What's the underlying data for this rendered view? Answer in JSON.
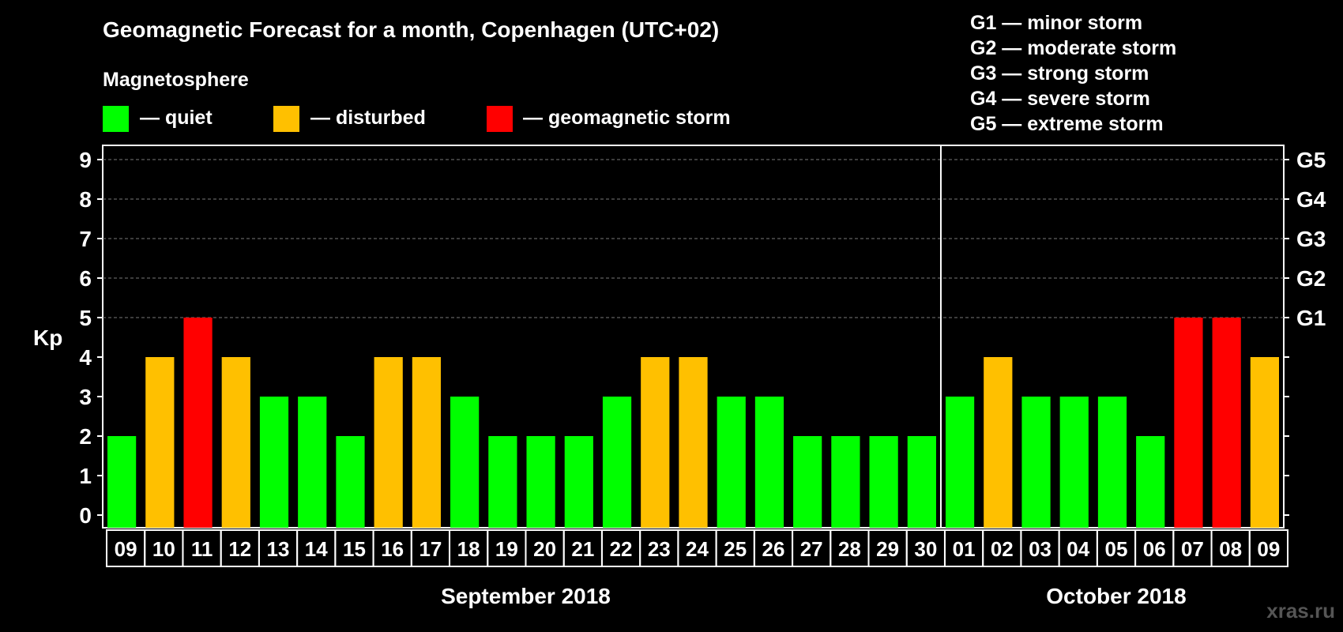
{
  "title": "Geomagnetic Forecast for a month, Copenhagen (UTC+02)",
  "subtitle": "Magnetosphere",
  "legend": [
    {
      "label": "— quiet",
      "color": "#00ff00"
    },
    {
      "label": "— disturbed",
      "color": "#ffc000"
    },
    {
      "label": "— geomagnetic storm",
      "color": "#ff0000"
    }
  ],
  "g_scale": [
    "G1 — minor storm",
    "G2 — moderate storm",
    "G3 — strong storm",
    "G4 — severe storm",
    "G5 — extreme storm"
  ],
  "watermark": "xras.ru",
  "chart_data": {
    "type": "bar",
    "title": "Geomagnetic Forecast for a month, Copenhagen (UTC+02)",
    "ylabel": "Kp",
    "ylim": [
      0,
      9
    ],
    "yticks": [
      "0",
      "1",
      "2",
      "3",
      "4",
      "5",
      "6",
      "7",
      "8",
      "9"
    ],
    "right_labels": [
      {
        "kp": 5,
        "label": "G1"
      },
      {
        "kp": 6,
        "label": "G2"
      },
      {
        "kp": 7,
        "label": "G3"
      },
      {
        "kp": 8,
        "label": "G4"
      },
      {
        "kp": 9,
        "label": "G5"
      }
    ],
    "categories": [
      "09",
      "10",
      "11",
      "12",
      "13",
      "14",
      "15",
      "16",
      "17",
      "18",
      "19",
      "20",
      "21",
      "22",
      "23",
      "24",
      "25",
      "26",
      "27",
      "28",
      "29",
      "30",
      "01",
      "02",
      "03",
      "04",
      "05",
      "06",
      "07",
      "08",
      "09"
    ],
    "values": [
      2,
      4,
      5,
      4,
      3,
      3,
      2,
      4,
      4,
      3,
      2,
      2,
      2,
      3,
      4,
      4,
      3,
      3,
      2,
      2,
      2,
      2,
      3,
      4,
      3,
      3,
      3,
      2,
      5,
      5,
      4
    ],
    "months": [
      {
        "label": "September 2018",
        "start": 0,
        "end": 21
      },
      {
        "label": "October 2018",
        "start": 22,
        "end": 30
      }
    ],
    "colors": {
      "quiet": "#00ff00",
      "disturbed": "#ffc000",
      "storm": "#ff0000"
    }
  }
}
